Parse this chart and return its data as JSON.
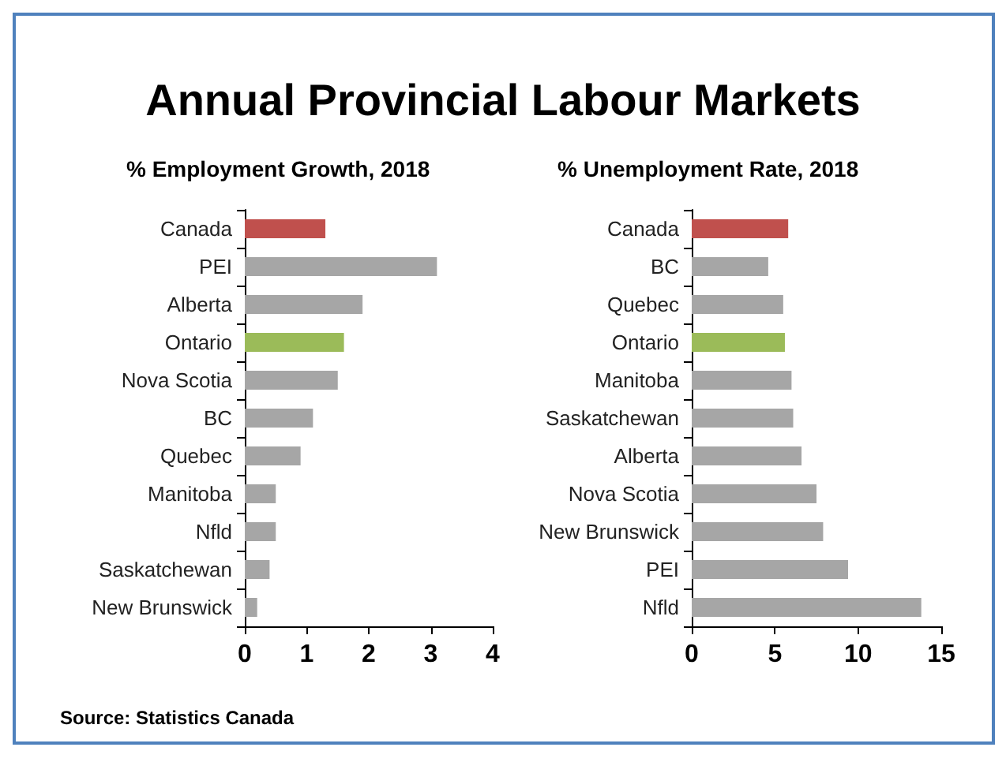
{
  "chart_data": [
    {
      "type": "bar",
      "orientation": "horizontal",
      "title": "Annual Provincial Labour Markets",
      "subtitle": "% Employment Growth, 2018",
      "annotations": [
        "Source: Statistics Canada"
      ],
      "categories": [
        "Canada",
        "PEI",
        "Alberta",
        "Ontario",
        "Nova Scotia",
        "BC",
        "Quebec",
        "Manitoba",
        "Nfld",
        "Saskatchewan",
        "New Brunswick"
      ],
      "values": [
        1.3,
        3.1,
        1.9,
        1.6,
        1.5,
        1.1,
        0.9,
        0.5,
        0.5,
        0.4,
        0.2
      ],
      "colors": [
        "#c0504d",
        "#a6a6a6",
        "#a6a6a6",
        "#9bbb59",
        "#a6a6a6",
        "#a6a6a6",
        "#a6a6a6",
        "#a6a6a6",
        "#a6a6a6",
        "#a6a6a6",
        "#a6a6a6"
      ],
      "xlim": [
        0,
        4
      ],
      "xticks": [
        0,
        1,
        2,
        3,
        4
      ]
    },
    {
      "type": "bar",
      "orientation": "horizontal",
      "subtitle": "% Unemployment Rate, 2018",
      "categories": [
        "Canada",
        "BC",
        "Quebec",
        "Ontario",
        "Manitoba",
        "Saskatchewan",
        "Alberta",
        "Nova Scotia",
        "New Brunswick",
        "PEI",
        "Nfld"
      ],
      "values": [
        5.8,
        4.6,
        5.5,
        5.6,
        6.0,
        6.1,
        6.6,
        7.5,
        7.9,
        9.4,
        13.8
      ],
      "colors": [
        "#c0504d",
        "#a6a6a6",
        "#a6a6a6",
        "#9bbb59",
        "#a6a6a6",
        "#a6a6a6",
        "#a6a6a6",
        "#a6a6a6",
        "#a6a6a6",
        "#a6a6a6",
        "#a6a6a6"
      ],
      "xlim": [
        0,
        15
      ],
      "xticks": [
        0,
        5,
        10,
        15
      ]
    }
  ]
}
